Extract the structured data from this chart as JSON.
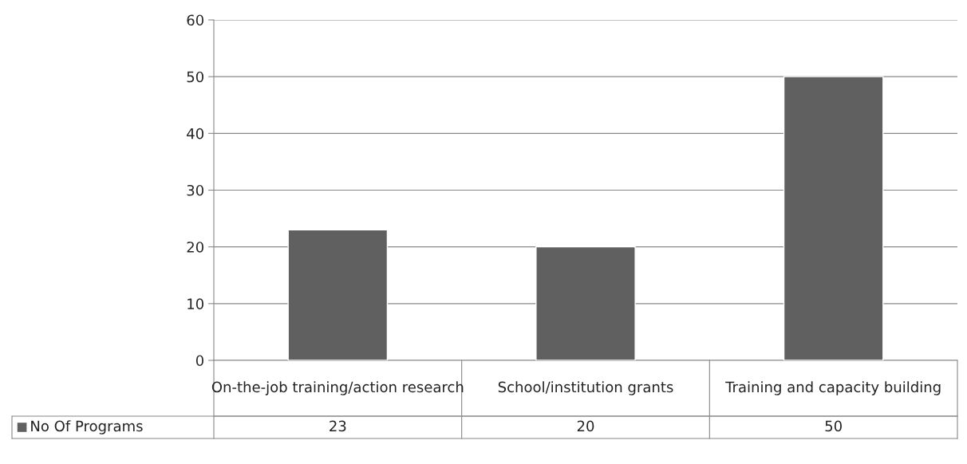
{
  "chart_data": {
    "type": "bar",
    "categories": [
      "On-the-job training/action research",
      "School/institution grants",
      "Training and capacity building"
    ],
    "series": [
      {
        "name": "No Of Programs",
        "color": "#606060",
        "values": [
          23,
          20,
          50
        ]
      }
    ],
    "ylim": [
      0,
      60
    ],
    "yticks": [
      0,
      10,
      20,
      30,
      40,
      50,
      60
    ],
    "grid": "y",
    "legend": "bottom",
    "data_labels": true
  }
}
